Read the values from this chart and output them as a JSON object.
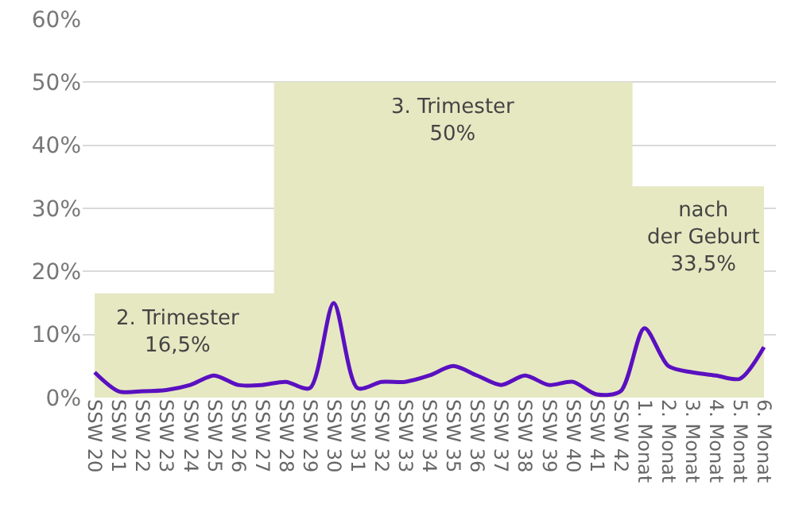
{
  "chart_data": {
    "type": "line",
    "categories": [
      "SSW 20",
      "SSW 21",
      "SSW 22",
      "SSW 23",
      "SSW 24",
      "SSW 25",
      "SSW 26",
      "SSW 27",
      "SSW 28",
      "SSW 29",
      "SSW 30",
      "SSW 31",
      "SSW 32",
      "SSW 33",
      "SSW 34",
      "SSW 35",
      "SSW 36",
      "SSW 37",
      "SSW 38",
      "SSW 39",
      "SSW 40",
      "SSW 41",
      "SSW 42",
      "1. Monat",
      "2. Monat",
      "3. Monat",
      "4. Monat",
      "5. Monat",
      "6. Monat"
    ],
    "series": [
      {
        "type": "area",
        "color": "#e6e8c2",
        "values": [
          16.5,
          16.5,
          16.5,
          16.5,
          16.5,
          16.5,
          16.5,
          16.5,
          50,
          50,
          50,
          50,
          50,
          50,
          50,
          50,
          50,
          50,
          50,
          50,
          50,
          50,
          50,
          33.5,
          33.5,
          33.5,
          33.5,
          33.5,
          33.5
        ]
      },
      {
        "color": "#5a10c0",
        "values": [
          4,
          1,
          1,
          1.2,
          2,
          3.5,
          2,
          2,
          2.5,
          1.5,
          15,
          1.5,
          2.5,
          2.5,
          3.5,
          5,
          3.5,
          2,
          3.5,
          2,
          2.5,
          0.5,
          1,
          11,
          5,
          4,
          3.5,
          3,
          8
        ]
      }
    ],
    "ylim": [
      0,
      60
    ],
    "yticks": [
      {
        "value": 0,
        "label": "0%"
      },
      {
        "value": 10,
        "label": "10%"
      },
      {
        "value": 20,
        "label": "20%"
      },
      {
        "value": 30,
        "label": "30%"
      },
      {
        "value": 40,
        "label": "40%"
      },
      {
        "value": 50,
        "label": "50%"
      },
      {
        "value": 60,
        "label": "60%"
      }
    ],
    "grid": "y",
    "legend": false,
    "marker": "none",
    "line_style": "solid",
    "annotations": [
      "2. Trimester\n16,5%",
      "3. Trimester\n50%",
      "nach\nder Geburt\n33,5%"
    ]
  }
}
